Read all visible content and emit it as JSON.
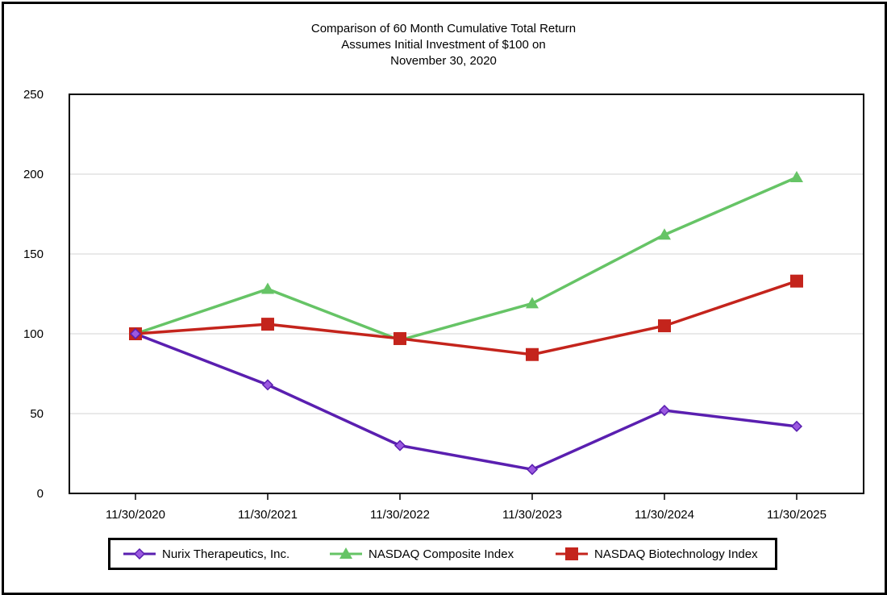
{
  "chart_data": {
    "type": "line",
    "title": [
      "Comparison of 60 Month Cumulative Total Return",
      "Assumes Initial Investment of $100 on",
      "November 30, 2020"
    ],
    "categories": [
      "11/30/2020",
      "11/30/2021",
      "11/30/2022",
      "11/30/2023",
      "11/30/2024",
      "11/30/2025"
    ],
    "ylim": [
      0,
      250
    ],
    "yticks": [
      0,
      50,
      100,
      150,
      200,
      250
    ],
    "grid": true,
    "legend_position": "bottom",
    "series": [
      {
        "name": "Nurix Therapeutics, Inc.",
        "marker": "diamond",
        "color": "#5a1fb0",
        "values": [
          100,
          68,
          30,
          15,
          52,
          42
        ]
      },
      {
        "name": "NASDAQ Composite Index",
        "marker": "triangle",
        "color": "#66c466",
        "values": [
          100,
          128,
          96,
          119,
          162,
          198
        ]
      },
      {
        "name": "NASDAQ Biotechnology Index",
        "marker": "square",
        "color": "#c4241c",
        "values": [
          100,
          106,
          97,
          87,
          105,
          133
        ]
      }
    ]
  }
}
